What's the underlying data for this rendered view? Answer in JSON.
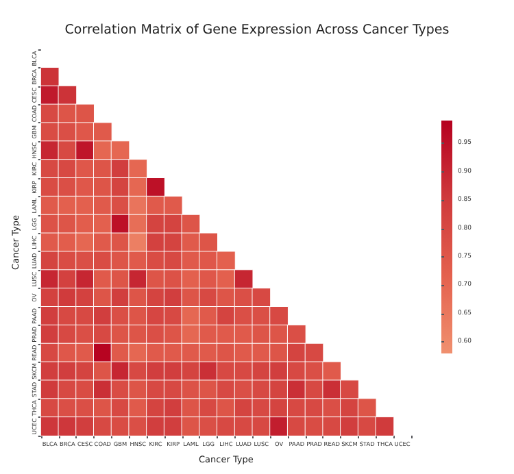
{
  "chart_data": {
    "type": "heatmap",
    "title": "Correlation Matrix of Gene Expression Across Cancer Types",
    "xlabel": "Cancer Type",
    "ylabel": "Cancer Type",
    "categories": [
      "BLCA",
      "BRCA",
      "CESC",
      "COAD",
      "GBM",
      "HNSC",
      "KIRC",
      "KIRP",
      "LAML",
      "LGG",
      "LIHC",
      "LUAD",
      "LUSC",
      "OV",
      "PAAD",
      "PRAD",
      "READ",
      "SKCM",
      "STAD",
      "THCA",
      "UCEC"
    ],
    "y_categories": [
      "BLCA",
      "BRCA",
      "CESC",
      "COAD",
      "GBM",
      "HNSC",
      "KIRC",
      "KIRP",
      "LAML",
      "LGG",
      "LIHC",
      "LUAD",
      "LUSC",
      "OV",
      "PAAD",
      "PRAD",
      "READ",
      "SKCM",
      "STAD",
      "THCA",
      "UCEC"
    ],
    "cells": [
      [
        null,
        null,
        null,
        null,
        null,
        null,
        null,
        null,
        null,
        null,
        null,
        null,
        null,
        null,
        null,
        null,
        null,
        null,
        null,
        null,
        null
      ],
      [
        0.87,
        null,
        null,
        null,
        null,
        null,
        null,
        null,
        null,
        null,
        null,
        null,
        null,
        null,
        null,
        null,
        null,
        null,
        null,
        null,
        null
      ],
      [
        0.93,
        0.87,
        null,
        null,
        null,
        null,
        null,
        null,
        null,
        null,
        null,
        null,
        null,
        null,
        null,
        null,
        null,
        null,
        null,
        null,
        null
      ],
      [
        0.8,
        0.76,
        0.76,
        null,
        null,
        null,
        null,
        null,
        null,
        null,
        null,
        null,
        null,
        null,
        null,
        null,
        null,
        null,
        null,
        null,
        null
      ],
      [
        0.79,
        0.78,
        0.75,
        0.74,
        null,
        null,
        null,
        null,
        null,
        null,
        null,
        null,
        null,
        null,
        null,
        null,
        null,
        null,
        null,
        null,
        null
      ],
      [
        0.9,
        0.8,
        0.94,
        0.7,
        0.7,
        null,
        null,
        null,
        null,
        null,
        null,
        null,
        null,
        null,
        null,
        null,
        null,
        null,
        null,
        null,
        null
      ],
      [
        0.8,
        0.8,
        0.75,
        0.76,
        0.84,
        0.7,
        null,
        null,
        null,
        null,
        null,
        null,
        null,
        null,
        null,
        null,
        null,
        null,
        null,
        null,
        null
      ],
      [
        0.79,
        0.78,
        0.75,
        0.76,
        0.82,
        0.7,
        0.95,
        null,
        null,
        null,
        null,
        null,
        null,
        null,
        null,
        null,
        null,
        null,
        null,
        null,
        null
      ],
      [
        0.74,
        0.72,
        0.72,
        0.74,
        0.78,
        0.66,
        0.74,
        0.74,
        null,
        null,
        null,
        null,
        null,
        null,
        null,
        null,
        null,
        null,
        null,
        null,
        null
      ],
      [
        0.77,
        0.76,
        0.73,
        0.72,
        0.95,
        0.68,
        0.82,
        0.82,
        0.76,
        null,
        null,
        null,
        null,
        null,
        null,
        null,
        null,
        null,
        null,
        null,
        null
      ],
      [
        0.74,
        0.73,
        0.7,
        0.74,
        0.76,
        0.63,
        0.83,
        0.82,
        0.74,
        0.76,
        null,
        null,
        null,
        null,
        null,
        null,
        null,
        null,
        null,
        null,
        null
      ],
      [
        0.82,
        0.79,
        0.78,
        0.79,
        0.76,
        0.74,
        0.79,
        0.8,
        0.74,
        0.75,
        0.72,
        null,
        null,
        null,
        null,
        null,
        null,
        null,
        null,
        null,
        null
      ],
      [
        0.9,
        0.83,
        0.9,
        0.74,
        0.76,
        0.9,
        0.76,
        0.77,
        0.72,
        0.75,
        0.72,
        0.9,
        null,
        null,
        null,
        null,
        null,
        null,
        null,
        null,
        null
      ],
      [
        0.83,
        0.85,
        0.83,
        0.76,
        0.84,
        0.76,
        0.82,
        0.84,
        0.76,
        0.8,
        0.76,
        0.78,
        0.8,
        null,
        null,
        null,
        null,
        null,
        null,
        null,
        null
      ],
      [
        0.84,
        0.8,
        0.8,
        0.84,
        0.78,
        0.76,
        0.81,
        0.8,
        0.7,
        0.74,
        0.82,
        0.78,
        0.78,
        0.8,
        null,
        null,
        null,
        null,
        null,
        null,
        null
      ],
      [
        0.84,
        0.8,
        0.78,
        0.8,
        0.76,
        0.76,
        0.78,
        0.76,
        0.7,
        0.74,
        0.74,
        0.74,
        0.76,
        0.76,
        0.78,
        null,
        null,
        null,
        null,
        null,
        null
      ],
      [
        0.8,
        0.75,
        0.74,
        0.98,
        0.74,
        0.7,
        0.74,
        0.74,
        0.74,
        0.74,
        0.76,
        0.74,
        0.74,
        0.76,
        0.82,
        0.8,
        null,
        null,
        null,
        null,
        null
      ],
      [
        0.84,
        0.84,
        0.82,
        0.76,
        0.9,
        0.8,
        0.84,
        0.84,
        0.82,
        0.88,
        0.8,
        0.8,
        0.82,
        0.84,
        0.8,
        0.78,
        0.74,
        null,
        null,
        null,
        null
      ],
      [
        0.85,
        0.8,
        0.79,
        0.88,
        0.79,
        0.76,
        0.8,
        0.8,
        0.77,
        0.76,
        0.8,
        0.78,
        0.8,
        0.82,
        0.88,
        0.8,
        0.88,
        0.8,
        null,
        null,
        null
      ],
      [
        0.8,
        0.78,
        0.78,
        0.76,
        0.8,
        0.74,
        0.82,
        0.84,
        0.76,
        0.8,
        0.76,
        0.82,
        0.8,
        0.82,
        0.8,
        0.8,
        0.78,
        0.82,
        0.76,
        null,
        null
      ],
      [
        0.86,
        0.86,
        0.84,
        0.8,
        0.79,
        0.78,
        0.84,
        0.84,
        0.76,
        0.78,
        0.8,
        0.8,
        0.8,
        0.92,
        0.8,
        0.79,
        0.8,
        0.84,
        0.8,
        0.85,
        null
      ]
    ],
    "clim": [
      0.58,
      0.99
    ],
    "cticks": [
      {
        "value": 0.6,
        "label": "0.60"
      },
      0.65,
      {
        "value": 0.7,
        "label": "0.70"
      },
      0.75,
      {
        "value": 0.8,
        "label": "0.80"
      },
      0.85,
      {
        "value": 0.9,
        "label": "0.90"
      },
      0.95
    ]
  }
}
